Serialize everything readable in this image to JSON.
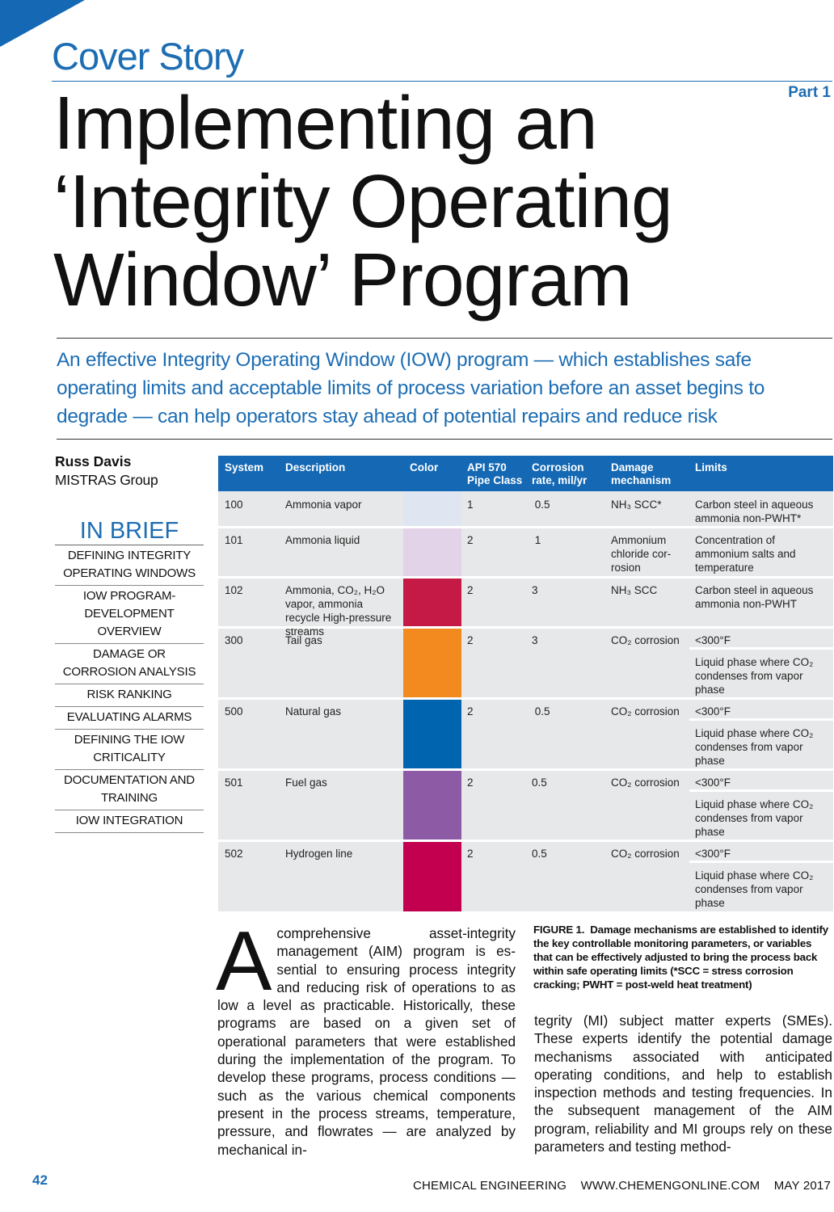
{
  "header": {
    "kicker": "Cover Story",
    "part": "Part 1",
    "title_lines": [
      "Implementing an",
      "‘Integrity Operating",
      "Window’ Program"
    ],
    "deck": "An effective Integrity Operating Window (IOW) program — which establishes safe operating limits and acceptable limits of process variation before an asset begins to degrade — can help operators stay ahead of potential repairs and reduce risk"
  },
  "byline": {
    "author": "Russ Davis",
    "affiliation": "MISTRAS Group"
  },
  "in_brief": {
    "title": "IN BRIEF",
    "items": [
      "DEFINING INTEGRITY OPERATING WINDOWS",
      "IOW PROGRAM-DEVELOPMENT OVERVIEW",
      "DAMAGE OR CORROSION ANALYSIS",
      "RISK RANKING",
      "EVALUATING ALARMS",
      "DEFINING THE IOW CRITICALITY",
      "DOCUMENTATION AND TRAINING",
      "IOW INTEGRATION"
    ]
  },
  "table": {
    "headers": {
      "system": "System",
      "description": "Description",
      "color": "Color",
      "api": "API 570 Pipe Class",
      "corrosion": "Corrosion rate, mil/yr",
      "damage": "Damage mechanism",
      "limits": "Limits"
    },
    "rows": [
      {
        "system": "100",
        "description": "Ammonia vapor",
        "color": "#dfe6f2",
        "api": "1",
        "corrosion": " 0.5",
        "damage": "NH₃ SCC*",
        "limits": [
          "Carbon steel in aqueous ammonia non-PWHT*"
        ]
      },
      {
        "system": "101",
        "description": "Ammonia liquid",
        "color": "#e2d3e8",
        "api": "2",
        "corrosion": " 1",
        "damage": "Ammonium chloride cor-rosion",
        "limits": [
          "Concentration of ammonium salts and temperature"
        ]
      },
      {
        "system": "102",
        "description": "Ammonia, CO₂, H₂O vapor, ammonia recycle High-pressure streams",
        "color": "#c41a45",
        "api": "2",
        "corrosion": "3",
        "damage": "NH₃ SCC",
        "limits": [
          "Carbon steel in aqueous ammonia non-PWHT"
        ]
      },
      {
        "system": "300",
        "description": "Tail gas",
        "color": "#f28a20",
        "api": "2",
        "corrosion": "3",
        "damage": "CO₂ corrosion",
        "limits": [
          "<300°F",
          "Liquid phase where CO₂ condenses from vapor phase"
        ]
      },
      {
        "system": "500",
        "description": "Natural gas",
        "color": "#0065ae",
        "api": "2",
        "corrosion": " 0.5",
        "damage": "CO₂ corrosion",
        "limits": [
          "<300°F",
          "Liquid phase where CO₂ condenses from vapor phase"
        ]
      },
      {
        "system": "501",
        "description": "Fuel gas",
        "color": "#8d5aa6",
        "api": "2",
        "corrosion": "0.5",
        "damage": "CO₂ corrosion",
        "limits": [
          "<300°F",
          "Liquid phase where CO₂ condenses from vapor phase"
        ]
      },
      {
        "system": "502",
        "description": "Hydrogen line",
        "color": "#c2004f",
        "api": "2",
        "corrosion": "0.5",
        "damage": "CO₂ corrosion",
        "limits": [
          "<300°F",
          "Liquid phase where CO₂ condenses from vapor phase"
        ]
      }
    ]
  },
  "caption": {
    "label": "FIGURE 1.",
    "text": "Damage mechanisms are established to identify the key controllable monitoring parameters, or variables that can be effectively adjusted to bring the process back within safe operating limits (*SCC = stress corrosion cracking; PWHT = post-weld heat treatment)"
  },
  "article": {
    "dropcap": "A",
    "col1": "comprehensive asset-integrity management (AIM) program is es­sential to ensuring process integ­rity and reducing risk of operations to as low a level as practicable. Historically, these programs are based on a given set of operational parameters that were es­tablished during the implementation of the program. To develop these programs, process conditions — such as the various chemical components present in the pro­cess streams, temperature, pressure, and flowrates — are analyzed by mechanical in-",
    "col2": "tegrity (MI) subject matter experts (SMEs). These experts identify the potential damage mechanisms associated with anticipated operating conditions, and help to establish inspection methods and testing frequen­cies. In the subsequent management of the AIM program, reliability and MI groups rely on these parameters and testing method-"
  },
  "footer": {
    "page_number": "42",
    "publication": "CHEMICAL ENGINEERING    WWW.CHEMENGONLINE.COM    MAY 2017"
  }
}
